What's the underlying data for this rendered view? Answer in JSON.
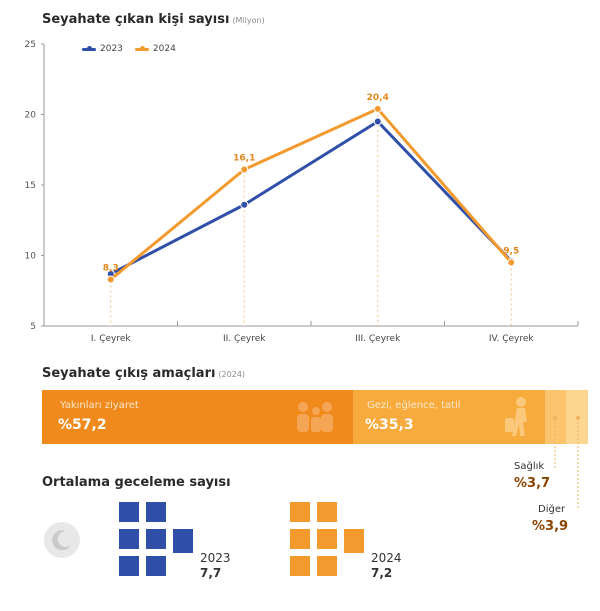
{
  "title": "Seyahate çıkan kişi sayısı",
  "subtitle": "(Milyon)",
  "legend": [
    {
      "label": "2023",
      "color": "#2f4fa8"
    },
    {
      "label": "2024",
      "color": "#f29a2e"
    }
  ],
  "chart_data": {
    "type": "line",
    "title": "Seyahate çıkan kişi sayısı",
    "unit": "(Milyon)",
    "categories": [
      "I. Çeyrek",
      "II. Çeyrek",
      "III. Çeyrek",
      "IV. Çeyrek"
    ],
    "yticks": [
      5,
      10,
      15,
      20,
      25
    ],
    "ylim": [
      5,
      25
    ],
    "series": [
      {
        "name": "2023",
        "color": "#2f4fa8",
        "values": [
          8.7,
          13.6,
          19.5,
          9.6
        ]
      },
      {
        "name": "2024",
        "color": "#f29a2e",
        "values": [
          8.3,
          16.1,
          20.4,
          9.5
        ],
        "labels": [
          "8,3",
          "16,1",
          "20,4",
          "9,5"
        ]
      }
    ],
    "grid": false,
    "legend": "top-left"
  },
  "purposes": {
    "title": "Seyahate çıkış amaçları",
    "subtitle": "(2024)",
    "items": [
      {
        "label": "Yakınları ziyaret",
        "value": "%57,2",
        "share": 57.2,
        "color": "#f08a1c"
      },
      {
        "label": "Gezi, eğlence, tatil",
        "value": "%35,3",
        "share": 35.3,
        "color": "#f7ab3d"
      },
      {
        "label": "Sağlık",
        "value": "%3,7",
        "share": 3.7,
        "color": "#fbc46d"
      },
      {
        "label": "Diğer",
        "value": "%3,9",
        "share": 3.9,
        "color": "#fdd690"
      }
    ]
  },
  "nights": {
    "title": "Ortalama geceleme sayısı",
    "icon": "moon-icon",
    "items": [
      {
        "year": "2023",
        "value": "7,7",
        "number": 7.7,
        "color": "#2f4fa8"
      },
      {
        "year": "2024",
        "value": "7,2",
        "number": 7.2,
        "color": "#f29a2e"
      }
    ]
  }
}
